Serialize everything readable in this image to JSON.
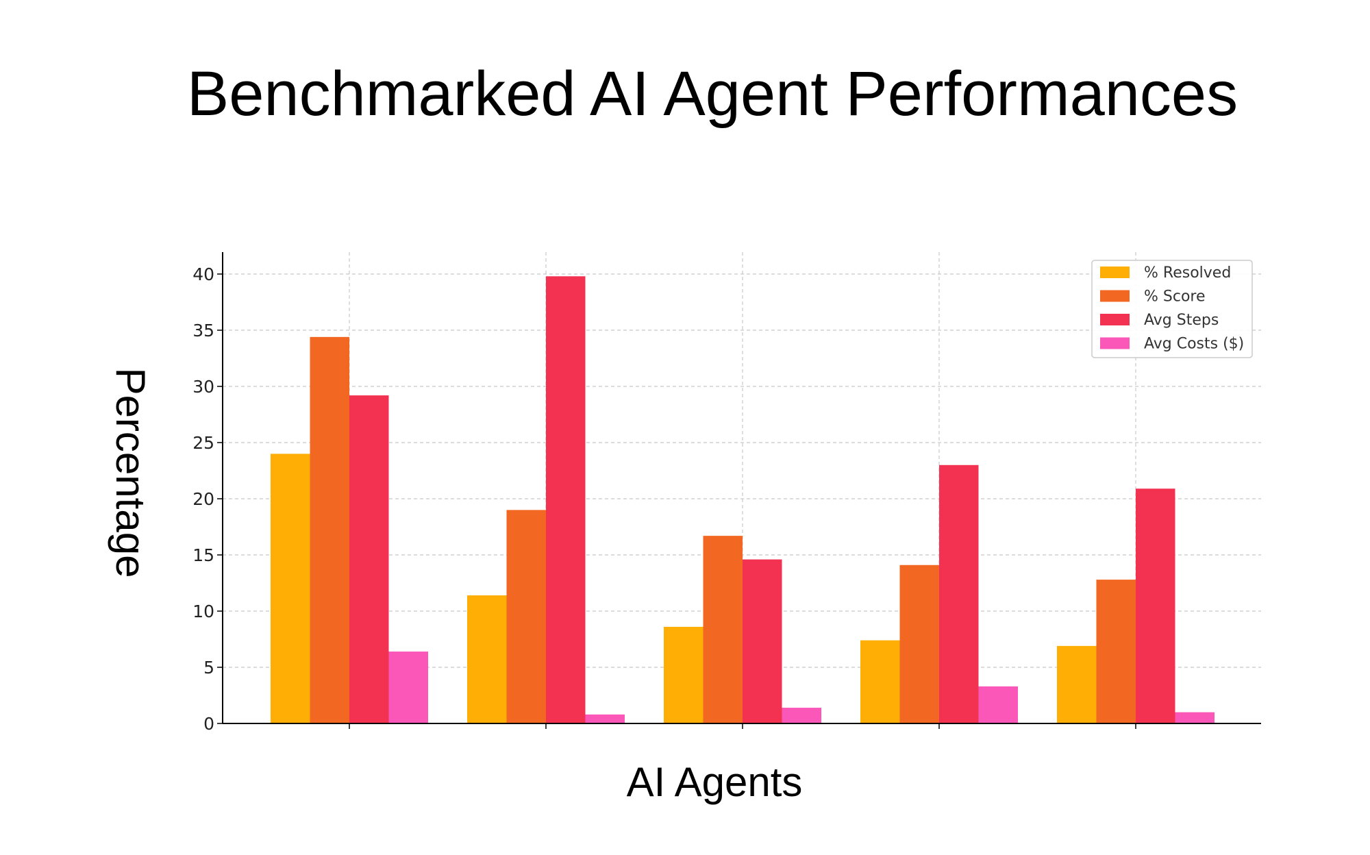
{
  "chart_data": {
    "type": "bar",
    "title": "Benchmarked AI Agent Performances",
    "xlabel": "AI Agents",
    "ylabel": "Percentage",
    "categories": [
      "",
      "",
      "",
      "",
      ""
    ],
    "ylim": [
      0,
      42
    ],
    "yticks": [
      0,
      5,
      10,
      15,
      20,
      25,
      30,
      35,
      40
    ],
    "grid": true,
    "legend_position": "top-right",
    "series": [
      {
        "name": "% Resolved",
        "color": "#FFAE05",
        "values": [
          24.0,
          11.4,
          8.6,
          7.4,
          6.9
        ]
      },
      {
        "name": "% Score",
        "color": "#F26822",
        "values": [
          34.4,
          19.0,
          16.7,
          14.1,
          12.8
        ]
      },
      {
        "name": "Avg Steps",
        "color": "#F23250",
        "values": [
          29.2,
          39.8,
          14.6,
          23.0,
          20.9
        ]
      },
      {
        "name": "Avg Costs ($)",
        "color": "#FA57B9",
        "values": [
          6.4,
          0.8,
          1.4,
          3.3,
          1.0
        ]
      }
    ]
  }
}
